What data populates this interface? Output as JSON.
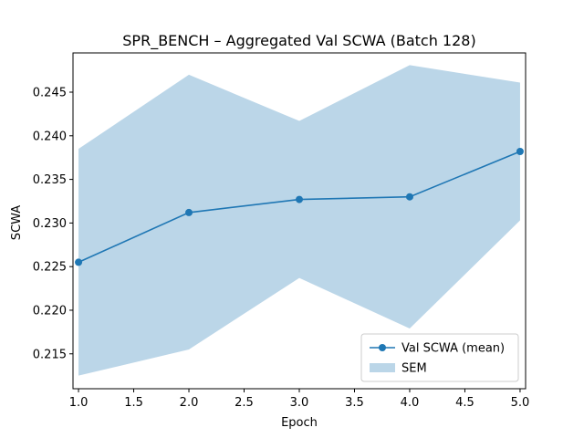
{
  "chart_data": {
    "type": "line",
    "title": "SPR_BENCH – Aggregated Val SCWA (Batch 128)",
    "xlabel": "Epoch",
    "ylabel": "SCWA",
    "x": [
      1.0,
      2.0,
      3.0,
      4.0,
      5.0
    ],
    "xlim": [
      0.95,
      5.05
    ],
    "ylim": [
      0.211,
      0.2495
    ],
    "xticks": [
      "1.0",
      "1.5",
      "2.0",
      "2.5",
      "3.0",
      "3.5",
      "4.0",
      "4.5",
      "5.0"
    ],
    "yticks": [
      "0.215",
      "0.220",
      "0.225",
      "0.230",
      "0.235",
      "0.240",
      "0.245"
    ],
    "series": [
      {
        "name": "Val SCWA (mean)",
        "values": [
          0.2255,
          0.2312,
          0.2327,
          0.233,
          0.2382
        ],
        "color": "#1f77b4"
      }
    ],
    "band": {
      "name": "SEM",
      "upper": [
        0.2385,
        0.247,
        0.2417,
        0.2481,
        0.2461
      ],
      "lower": [
        0.2125,
        0.2155,
        0.2237,
        0.2179,
        0.2303
      ],
      "color": "#1f77b4",
      "opacity": 0.3
    },
    "legend": {
      "position": "lower-right",
      "entries": [
        "Val SCWA (mean)",
        "SEM"
      ]
    },
    "grid": false
  }
}
